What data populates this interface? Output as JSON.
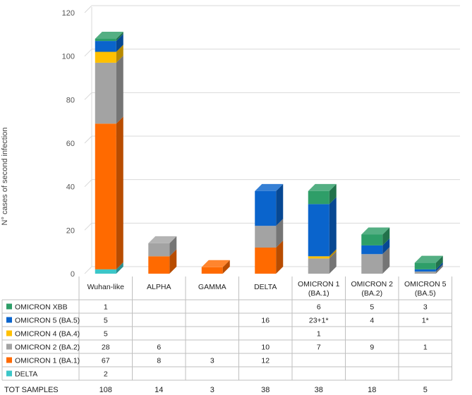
{
  "chart_data": {
    "type": "bar",
    "stacked": true,
    "three_d": true,
    "ylabel": "N° cases of second infection",
    "ylim": [
      0,
      120
    ],
    "yticks": [
      0,
      20,
      40,
      60,
      80,
      100,
      120
    ],
    "grid": true,
    "categories": [
      [
        "Wuhan-like"
      ],
      [
        "ALPHA"
      ],
      [
        "GAMMA"
      ],
      [
        "DELTA"
      ],
      [
        "OMICRON 1",
        "(BA.1)"
      ],
      [
        "OMICRON 2",
        "(BA.2)"
      ],
      [
        "OMICRON 5",
        "(BA.5)"
      ]
    ],
    "series": [
      {
        "name": "DELTA",
        "color": "#3cc6c8",
        "values": [
          2,
          0,
          0,
          0,
          0,
          0,
          0
        ],
        "labels": [
          "2",
          "",
          "",
          "",
          "",
          "",
          ""
        ]
      },
      {
        "name": "OMICRON 1 (BA.1)",
        "color": "#ff6a00",
        "values": [
          67,
          8,
          3,
          12,
          0,
          0,
          0
        ],
        "labels": [
          "67",
          "8",
          "3",
          "12",
          "",
          "",
          ""
        ]
      },
      {
        "name": "OMICRON 2 (BA.2)",
        "color": "#a3a3a3",
        "values": [
          28,
          6,
          0,
          10,
          7,
          9,
          1
        ],
        "labels": [
          "28",
          "6",
          "",
          "10",
          "7",
          "9",
          "1"
        ]
      },
      {
        "name": "OMICRON 4 (BA.4)",
        "color": "#ffc000",
        "values": [
          5,
          0,
          0,
          0,
          1,
          0,
          0
        ],
        "labels": [
          "5",
          "",
          "",
          "",
          "1",
          "",
          ""
        ]
      },
      {
        "name": "OMICRON 5 (BA.5)",
        "color": "#0a64cc",
        "values": [
          5,
          0,
          0,
          16,
          24,
          4,
          1
        ],
        "labels": [
          "5",
          "",
          "",
          "16",
          "23+1*",
          "4",
          "1*"
        ]
      },
      {
        "name": "OMICRON XBB",
        "color": "#2e9e68",
        "values": [
          1,
          0,
          0,
          0,
          6,
          5,
          3
        ],
        "labels": [
          "1",
          "",
          "",
          "",
          "6",
          "5",
          "3"
        ]
      }
    ],
    "totals_label": "TOT SAMPLES",
    "totals": [
      "108",
      "14",
      "3",
      "38",
      "38",
      "18",
      "5"
    ]
  }
}
